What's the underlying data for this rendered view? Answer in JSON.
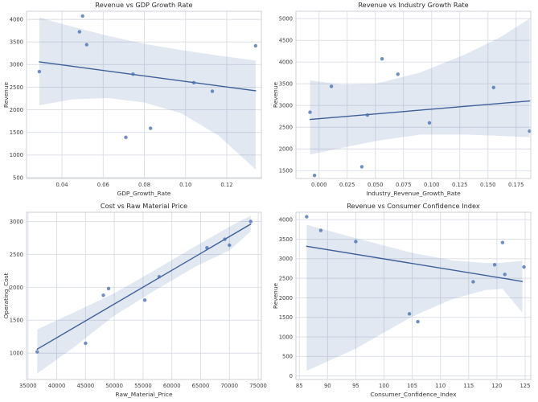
{
  "figure": {
    "background": "#ffffff",
    "plot_background": "#ffffff",
    "grid_color": "#dadde5",
    "spine_color": "#ccd0d9",
    "point_color": "#4c72b0",
    "line_color": "#3d5e98",
    "band_color": "#4c72b0",
    "band_opacity": 0.16,
    "title_color": "#2b2b2b",
    "tick_color": "#3f3f3f",
    "label_color": "#333333"
  },
  "chart_data": [
    {
      "type": "scatter",
      "title": "Revenue vs GDP Growth Rate",
      "xlabel": "GDP_Growth_Rate",
      "ylabel": "Revenue",
      "xlim": [
        0.0228,
        0.1368
      ],
      "ylim": [
        480,
        4180
      ],
      "xticks": [
        0.04,
        0.06,
        0.08,
        0.1,
        0.12
      ],
      "xtick_labels": [
        "0.04",
        "0.06",
        "0.08",
        "0.10",
        "0.12"
      ],
      "yticks": [
        500,
        1000,
        1500,
        2000,
        2500,
        3000,
        3500,
        4000
      ],
      "ytick_labels": [
        "500",
        "1000",
        "1500",
        "2000",
        "2500",
        "3000",
        "3500",
        "4000"
      ],
      "grid": true,
      "legend": "none",
      "points": [
        [
          0.029,
          2845
        ],
        [
          0.0485,
          3725
        ],
        [
          0.05,
          4075
        ],
        [
          0.052,
          3440
        ],
        [
          0.071,
          1390
        ],
        [
          0.0745,
          2790
        ],
        [
          0.083,
          1590
        ],
        [
          0.104,
          2600
        ],
        [
          0.113,
          2410
        ],
        [
          0.134,
          3415
        ]
      ],
      "regression": {
        "x": [
          0.029,
          0.134
        ],
        "y": [
          3060,
          2420
        ]
      },
      "ci_band": {
        "x": [
          0.029,
          0.045,
          0.062,
          0.08,
          0.098,
          0.116,
          0.134
        ],
        "upper": [
          4040,
          3840,
          3640,
          3460,
          3320,
          3200,
          3090
        ],
        "lower": [
          2100,
          2230,
          2260,
          2160,
          1920,
          1430,
          680
        ]
      }
    },
    {
      "type": "scatter",
      "title": "Revenue vs Industry Growth Rate",
      "xlabel": "Industry_Revenue_Growth_Rate",
      "ylabel": "Revenue",
      "xlim": [
        -0.0205,
        0.188
      ],
      "ylim": [
        1320,
        5170
      ],
      "xticks": [
        0.0,
        0.025,
        0.05,
        0.075,
        0.1,
        0.125,
        0.15,
        0.175
      ],
      "xtick_labels": [
        "0.000",
        "0.025",
        "0.050",
        "0.075",
        "0.100",
        "0.125",
        "0.150",
        "0.175"
      ],
      "yticks": [
        1500,
        2000,
        2500,
        3000,
        3500,
        4000,
        4500,
        5000
      ],
      "ytick_labels": [
        "1500",
        "2000",
        "2500",
        "3000",
        "3500",
        "4000",
        "4500",
        "5000"
      ],
      "grid": true,
      "legend": "none",
      "points": [
        [
          -0.008,
          2845
        ],
        [
          -0.004,
          1390
        ],
        [
          0.011,
          3440
        ],
        [
          0.038,
          1590
        ],
        [
          0.043,
          2780
        ],
        [
          0.056,
          4075
        ],
        [
          0.07,
          3720
        ],
        [
          0.098,
          2600
        ],
        [
          0.155,
          3415
        ],
        [
          0.187,
          2410
        ]
      ],
      "regression": {
        "x": [
          -0.008,
          0.187
        ],
        "y": [
          2680,
          3105
        ]
      },
      "ci_band": {
        "x": [
          -0.008,
          0.02,
          0.05,
          0.09,
          0.13,
          0.16,
          0.187
        ],
        "upper": [
          3580,
          3480,
          3500,
          3760,
          4180,
          4560,
          5000
        ],
        "lower": [
          1870,
          2020,
          2180,
          2330,
          2330,
          2300,
          2270
        ]
      }
    },
    {
      "type": "scatter",
      "title": "Cost vs Raw Material Price",
      "xlabel": "Raw_Material_Price",
      "ylabel": "Operating_Cost",
      "xlim": [
        34750,
        75550
      ],
      "ylim": [
        600,
        3140
      ],
      "xticks": [
        35000,
        40000,
        45000,
        50000,
        55000,
        60000,
        65000,
        70000,
        75000
      ],
      "xtick_labels": [
        "35000",
        "40000",
        "45000",
        "50000",
        "55000",
        "60000",
        "65000",
        "70000",
        "75000"
      ],
      "yticks": [
        1000,
        1500,
        2000,
        2500,
        3000
      ],
      "ytick_labels": [
        "1000",
        "1500",
        "2000",
        "2500",
        "3000"
      ],
      "grid": true,
      "legend": "none",
      "points": [
        [
          36600,
          1020
        ],
        [
          45000,
          1150
        ],
        [
          48100,
          1880
        ],
        [
          49000,
          1980
        ],
        [
          55300,
          1805
        ],
        [
          57800,
          2160
        ],
        [
          66100,
          2600
        ],
        [
          69200,
          2730
        ],
        [
          70000,
          2640
        ],
        [
          73700,
          3000
        ]
      ],
      "regression": {
        "x": [
          36600,
          73700
        ],
        "y": [
          1060,
          2960
        ]
      },
      "ci_band": {
        "x": [
          36600,
          43000,
          50000,
          57000,
          64000,
          70000,
          73700
        ],
        "upper": [
          1360,
          1620,
          1910,
          2260,
          2620,
          2920,
          3090
        ],
        "lower": [
          690,
          1090,
          1570,
          1950,
          2310,
          2560,
          2850
        ]
      }
    },
    {
      "type": "scatter",
      "title": "Revenue vs Consumer Confidence Index",
      "xlabel": "Consumer_Confidence_Index",
      "ylabel": "Revenue",
      "xlim": [
        84.4,
        126.0
      ],
      "ylim": [
        -90,
        4190
      ],
      "xticks": [
        85,
        90,
        95,
        100,
        105,
        110,
        115,
        120,
        125
      ],
      "xtick_labels": [
        "85",
        "90",
        "95",
        "100",
        "105",
        "110",
        "115",
        "120",
        "125"
      ],
      "yticks": [
        0,
        500,
        1000,
        1500,
        2000,
        2500,
        3000,
        3500,
        4000
      ],
      "ytick_labels": [
        "0",
        "500",
        "1000",
        "1500",
        "2000",
        "2500",
        "3000",
        "3500",
        "4000"
      ],
      "grid": true,
      "legend": "none",
      "points": [
        [
          86.3,
          4075
        ],
        [
          88.8,
          3725
        ],
        [
          95.0,
          3440
        ],
        [
          104.5,
          1590
        ],
        [
          106.0,
          1390
        ],
        [
          115.8,
          2410
        ],
        [
          119.6,
          2845
        ],
        [
          121.0,
          3415
        ],
        [
          121.4,
          2600
        ],
        [
          124.8,
          2790
        ]
      ],
      "regression": {
        "x": [
          86.3,
          124.5
        ],
        "y": [
          3320,
          2420
        ]
      },
      "ci_band": {
        "x": [
          86.3,
          95,
          105,
          112,
          118,
          121,
          124.5
        ],
        "upper": [
          3870,
          3530,
          3150,
          2960,
          2890,
          2900,
          2950
        ],
        "lower": [
          130,
          700,
          1520,
          1960,
          2200,
          2230,
          1620
        ]
      }
    }
  ]
}
